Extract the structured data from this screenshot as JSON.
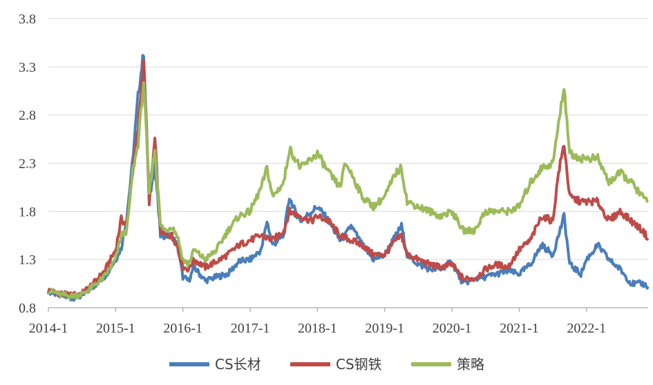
{
  "chart_data": {
    "type": "line",
    "title": "",
    "xlabel": "",
    "ylabel": "",
    "ylim": [
      0.8,
      3.8
    ],
    "yticks": [
      "0.8",
      "1.3",
      "1.8",
      "2.3",
      "2.8",
      "3.3",
      "3.8"
    ],
    "xticks": [
      "2014-1",
      "2015-1",
      "2016-1",
      "2017-1",
      "2018-1",
      "2019-1",
      "2020-1",
      "2021-1",
      "2022-1"
    ],
    "xlim": [
      "2014-01",
      "2022-12"
    ],
    "grid": "horizontal",
    "legend_position": "bottom",
    "series": [
      {
        "name": "CS长材",
        "color": "#4a7ebb",
        "points": [
          [
            "2014-01",
            0.97
          ],
          [
            "2014-03",
            0.93
          ],
          [
            "2014-05",
            0.9
          ],
          [
            "2014-07",
            0.92
          ],
          [
            "2014-09",
            1.02
          ],
          [
            "2014-11",
            1.12
          ],
          [
            "2015-01",
            1.3
          ],
          [
            "2015-02",
            1.42
          ],
          [
            "2015-03",
            1.75
          ],
          [
            "2015-04",
            2.3
          ],
          [
            "2015-05",
            3.0
          ],
          [
            "2015-06",
            3.45
          ],
          [
            "2015-07",
            1.9
          ],
          [
            "2015-08",
            2.3
          ],
          [
            "2015-09",
            1.55
          ],
          [
            "2015-10",
            1.55
          ],
          [
            "2015-11",
            1.55
          ],
          [
            "2015-12",
            1.45
          ],
          [
            "2016-01",
            1.12
          ],
          [
            "2016-02",
            1.08
          ],
          [
            "2016-03",
            1.22
          ],
          [
            "2016-05",
            1.08
          ],
          [
            "2016-07",
            1.12
          ],
          [
            "2016-09",
            1.15
          ],
          [
            "2016-11",
            1.28
          ],
          [
            "2017-01",
            1.3
          ],
          [
            "2017-03",
            1.4
          ],
          [
            "2017-04",
            1.7
          ],
          [
            "2017-05",
            1.45
          ],
          [
            "2017-07",
            1.55
          ],
          [
            "2017-08",
            1.95
          ],
          [
            "2017-09",
            1.8
          ],
          [
            "2017-10",
            1.7
          ],
          [
            "2017-12",
            1.8
          ],
          [
            "2018-01",
            1.85
          ],
          [
            "2018-03",
            1.7
          ],
          [
            "2018-05",
            1.5
          ],
          [
            "2018-06",
            1.55
          ],
          [
            "2018-07",
            1.65
          ],
          [
            "2018-09",
            1.45
          ],
          [
            "2018-11",
            1.3
          ],
          [
            "2019-01",
            1.35
          ],
          [
            "2019-03",
            1.55
          ],
          [
            "2019-04",
            1.65
          ],
          [
            "2019-05",
            1.35
          ],
          [
            "2019-07",
            1.25
          ],
          [
            "2019-09",
            1.2
          ],
          [
            "2019-11",
            1.2
          ],
          [
            "2020-01",
            1.28
          ],
          [
            "2020-02",
            1.15
          ],
          [
            "2020-03",
            1.05
          ],
          [
            "2020-05",
            1.1
          ],
          [
            "2020-07",
            1.12
          ],
          [
            "2020-09",
            1.15
          ],
          [
            "2020-11",
            1.18
          ],
          [
            "2021-01",
            1.15
          ],
          [
            "2021-03",
            1.25
          ],
          [
            "2021-05",
            1.45
          ],
          [
            "2021-07",
            1.35
          ],
          [
            "2021-09",
            1.75
          ],
          [
            "2021-10",
            1.25
          ],
          [
            "2021-12",
            1.15
          ],
          [
            "2022-01",
            1.3
          ],
          [
            "2022-03",
            1.45
          ],
          [
            "2022-05",
            1.3
          ],
          [
            "2022-07",
            1.2
          ],
          [
            "2022-09",
            1.05
          ],
          [
            "2022-11",
            1.05
          ],
          [
            "2022-12",
            1.02
          ]
        ]
      },
      {
        "name": "CS钢铁",
        "color": "#be4b48",
        "points": [
          [
            "2014-01",
            0.98
          ],
          [
            "2014-03",
            0.95
          ],
          [
            "2014-05",
            0.93
          ],
          [
            "2014-07",
            0.95
          ],
          [
            "2014-09",
            1.05
          ],
          [
            "2014-11",
            1.18
          ],
          [
            "2015-01",
            1.4
          ],
          [
            "2015-02",
            1.72
          ],
          [
            "2015-03",
            1.65
          ],
          [
            "2015-04",
            2.2
          ],
          [
            "2015-05",
            2.65
          ],
          [
            "2015-06",
            3.38
          ],
          [
            "2015-07",
            1.9
          ],
          [
            "2015-08",
            2.55
          ],
          [
            "2015-09",
            1.6
          ],
          [
            "2015-10",
            1.55
          ],
          [
            "2015-11",
            1.55
          ],
          [
            "2015-12",
            1.45
          ],
          [
            "2016-01",
            1.22
          ],
          [
            "2016-02",
            1.2
          ],
          [
            "2016-03",
            1.3
          ],
          [
            "2016-05",
            1.22
          ],
          [
            "2016-07",
            1.28
          ],
          [
            "2016-09",
            1.35
          ],
          [
            "2016-11",
            1.45
          ],
          [
            "2017-01",
            1.5
          ],
          [
            "2017-03",
            1.55
          ],
          [
            "2017-05",
            1.5
          ],
          [
            "2017-07",
            1.6
          ],
          [
            "2017-08",
            1.8
          ],
          [
            "2017-10",
            1.75
          ],
          [
            "2017-12",
            1.7
          ],
          [
            "2018-01",
            1.75
          ],
          [
            "2018-03",
            1.7
          ],
          [
            "2018-05",
            1.55
          ],
          [
            "2018-07",
            1.5
          ],
          [
            "2018-09",
            1.45
          ],
          [
            "2018-11",
            1.35
          ],
          [
            "2019-01",
            1.35
          ],
          [
            "2019-03",
            1.5
          ],
          [
            "2019-04",
            1.55
          ],
          [
            "2019-05",
            1.35
          ],
          [
            "2019-07",
            1.3
          ],
          [
            "2019-09",
            1.25
          ],
          [
            "2019-11",
            1.22
          ],
          [
            "2020-01",
            1.25
          ],
          [
            "2020-03",
            1.1
          ],
          [
            "2020-05",
            1.1
          ],
          [
            "2020-07",
            1.2
          ],
          [
            "2020-09",
            1.25
          ],
          [
            "2020-11",
            1.22
          ],
          [
            "2021-01",
            1.4
          ],
          [
            "2021-03",
            1.5
          ],
          [
            "2021-05",
            1.75
          ],
          [
            "2021-07",
            1.7
          ],
          [
            "2021-08",
            2.2
          ],
          [
            "2021-09",
            2.5
          ],
          [
            "2021-10",
            1.95
          ],
          [
            "2021-12",
            1.9
          ],
          [
            "2022-01",
            1.9
          ],
          [
            "2022-03",
            1.9
          ],
          [
            "2022-05",
            1.7
          ],
          [
            "2022-07",
            1.8
          ],
          [
            "2022-09",
            1.7
          ],
          [
            "2022-11",
            1.6
          ],
          [
            "2022-12",
            1.52
          ]
        ]
      },
      {
        "name": "策略",
        "color": "#9bbb59",
        "points": [
          [
            "2014-01",
            0.98
          ],
          [
            "2014-03",
            0.94
          ],
          [
            "2014-05",
            0.92
          ],
          [
            "2014-07",
            0.94
          ],
          [
            "2014-09",
            1.02
          ],
          [
            "2014-11",
            1.12
          ],
          [
            "2015-01",
            1.3
          ],
          [
            "2015-02",
            1.55
          ],
          [
            "2015-03",
            1.6
          ],
          [
            "2015-04",
            2.2
          ],
          [
            "2015-05",
            2.5
          ],
          [
            "2015-06",
            3.15
          ],
          [
            "2015-07",
            2.0
          ],
          [
            "2015-08",
            2.45
          ],
          [
            "2015-09",
            1.65
          ],
          [
            "2015-10",
            1.6
          ],
          [
            "2015-11",
            1.65
          ],
          [
            "2015-12",
            1.55
          ],
          [
            "2016-01",
            1.3
          ],
          [
            "2016-02",
            1.25
          ],
          [
            "2016-03",
            1.4
          ],
          [
            "2016-05",
            1.3
          ],
          [
            "2016-07",
            1.4
          ],
          [
            "2016-09",
            1.6
          ],
          [
            "2016-11",
            1.75
          ],
          [
            "2017-01",
            1.8
          ],
          [
            "2017-03",
            2.05
          ],
          [
            "2017-04",
            2.25
          ],
          [
            "2017-05",
            1.95
          ],
          [
            "2017-07",
            2.1
          ],
          [
            "2017-08",
            2.45
          ],
          [
            "2017-10",
            2.25
          ],
          [
            "2017-12",
            2.35
          ],
          [
            "2018-01",
            2.4
          ],
          [
            "2018-03",
            2.2
          ],
          [
            "2018-05",
            2.05
          ],
          [
            "2018-06",
            2.3
          ],
          [
            "2018-07",
            2.2
          ],
          [
            "2018-09",
            1.95
          ],
          [
            "2018-11",
            1.85
          ],
          [
            "2019-01",
            1.95
          ],
          [
            "2019-03",
            2.2
          ],
          [
            "2019-04",
            2.25
          ],
          [
            "2019-05",
            1.9
          ],
          [
            "2019-07",
            1.85
          ],
          [
            "2019-09",
            1.8
          ],
          [
            "2019-11",
            1.75
          ],
          [
            "2020-01",
            1.8
          ],
          [
            "2020-03",
            1.6
          ],
          [
            "2020-05",
            1.6
          ],
          [
            "2020-07",
            1.8
          ],
          [
            "2020-09",
            1.8
          ],
          [
            "2020-11",
            1.8
          ],
          [
            "2021-01",
            1.85
          ],
          [
            "2021-03",
            2.1
          ],
          [
            "2021-05",
            2.25
          ],
          [
            "2021-07",
            2.3
          ],
          [
            "2021-09",
            3.1
          ],
          [
            "2021-10",
            2.4
          ],
          [
            "2021-12",
            2.35
          ],
          [
            "2022-01",
            2.35
          ],
          [
            "2022-03",
            2.35
          ],
          [
            "2022-05",
            2.1
          ],
          [
            "2022-07",
            2.2
          ],
          [
            "2022-09",
            2.1
          ],
          [
            "2022-11",
            1.95
          ],
          [
            "2022-12",
            1.9
          ]
        ]
      }
    ]
  }
}
